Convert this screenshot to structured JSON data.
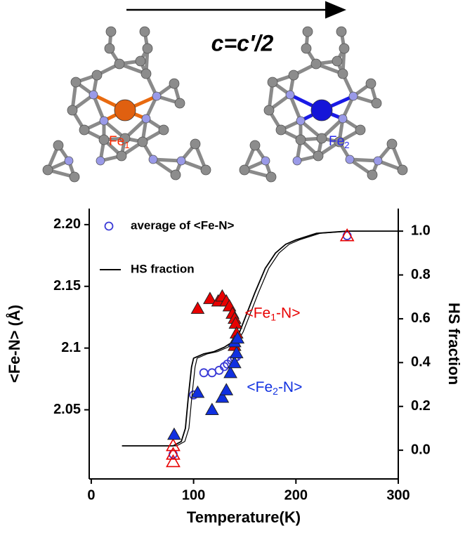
{
  "header": {
    "arrow_label": "c=c′/2",
    "fe_labels": [
      {
        "parts": [
          "Fe",
          "1"
        ],
        "color": "#ff2a00"
      },
      {
        "parts": [
          "Fe",
          "2"
        ],
        "color": "#2b2bee"
      }
    ]
  },
  "chart_data": {
    "type": "scatter",
    "y_label": "<Fe-N> (Å)",
    "y2_label": "HS fraction",
    "x_label": "Temperature(K)",
    "xlim": [
      -2,
      300
    ],
    "xticks": [
      0,
      100,
      200,
      300
    ],
    "ylim": [
      1.994,
      2.213
    ],
    "yticks": [
      2.05,
      2.1,
      2.15,
      {
        "value": 2.2,
        "label": "2.20"
      }
    ],
    "y2lim": [
      -0.131,
      1.103
    ],
    "y2ticks": [
      {
        "value": 0,
        "label": "0.0"
      },
      0.2,
      0.4,
      0.6,
      0.8,
      {
        "value": 1,
        "label": "1.0"
      }
    ],
    "series": [
      {
        "name": "average of <Fe-N>",
        "marker": "circle-open",
        "color": "#3a3ad6",
        "x": [
          80,
          100,
          110,
          118,
          125,
          130,
          133,
          137,
          140,
          142,
          250
        ],
        "values": [
          2.014,
          2.062,
          2.08,
          2.08,
          2.082,
          2.085,
          2.087,
          2.09,
          2.092,
          2.093,
          2.191
        ]
      },
      {
        "name": "HS fraction",
        "marker": "line",
        "axis": "y2",
        "color": "#000000",
        "x": [
          30,
          60,
          80,
          88,
          92,
          95,
          98,
          100,
          110,
          120,
          130,
          140,
          145,
          150,
          160,
          170,
          180,
          190,
          200,
          220,
          250,
          300
        ],
        "values": [
          0.02,
          0.02,
          0.02,
          0.04,
          0.1,
          0.25,
          0.38,
          0.42,
          0.44,
          0.45,
          0.47,
          0.5,
          0.54,
          0.6,
          0.72,
          0.83,
          0.9,
          0.94,
          0.96,
          0.99,
          1.0,
          1.0
        ]
      },
      {
        "marker": "triangle",
        "color": "#e80000",
        "x": [
          104,
          116,
          124,
          128,
          132,
          135,
          138,
          140,
          141,
          142,
          140
        ],
        "values": [
          2.132,
          2.14,
          2.138,
          2.142,
          2.138,
          2.134,
          2.128,
          2.124,
          2.12,
          2.112,
          2.102
        ]
      },
      {
        "marker": "triangle-open",
        "color": "#e80000",
        "x": [
          80,
          80,
          80,
          250
        ],
        "values": [
          2.021,
          2.014,
          2.008,
          2.191
        ]
      },
      {
        "marker": "triangle",
        "color": "#1030e0",
        "x": [
          81,
          104,
          118,
          128,
          132,
          136,
          140,
          142,
          140,
          143
        ],
        "values": [
          2.03,
          2.064,
          2.05,
          2.06,
          2.066,
          2.08,
          2.088,
          2.096,
          2.105,
          2.108
        ]
      }
    ],
    "annotations": [
      {
        "parts": [
          "<Fe",
          "1",
          "-N>"
        ],
        "x": 150,
        "y": 2.128,
        "color": "#e80000"
      },
      {
        "parts": [
          "<Fe",
          "2",
          "-N>"
        ],
        "x": 152,
        "y": 2.068,
        "color": "#1030e0"
      }
    ]
  }
}
